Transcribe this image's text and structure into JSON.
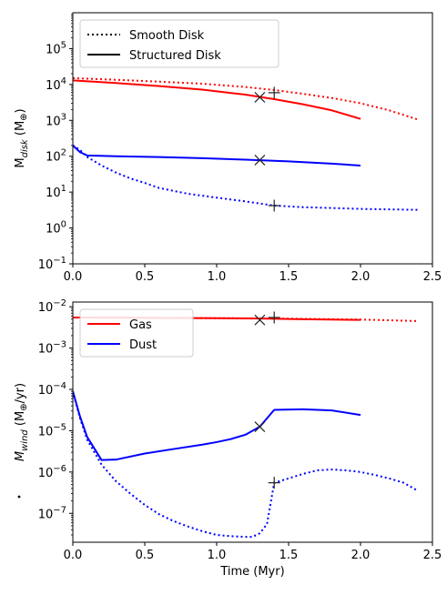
{
  "chart_data": [
    {
      "type": "line",
      "xlabel": "",
      "ylabel_main": "M",
      "ylabel_sub": "disk",
      "ylabel_unit": " (M",
      "ylabel_unit_sym": "⊕",
      "ylabel_unit_end": ")",
      "xlim": [
        0,
        2.5
      ],
      "ylim": [
        0.1,
        1000000
      ],
      "yscale": "log",
      "xticks": [
        0.0,
        0.5,
        1.0,
        1.5,
        2.0,
        2.5
      ],
      "xtick_labels": [
        "0.0",
        "0.5",
        "1.0",
        "1.5",
        "2.0",
        "2.5"
      ],
      "yticks": [
        0.1,
        1,
        10,
        100,
        1000,
        10000,
        100000
      ],
      "ytick_labels": [
        {
          "base": "10",
          "exp": "−1"
        },
        {
          "base": "10",
          "exp": "0"
        },
        {
          "base": "10",
          "exp": "1"
        },
        {
          "base": "10",
          "exp": "2"
        },
        {
          "base": "10",
          "exp": "3"
        },
        {
          "base": "10",
          "exp": "4"
        },
        {
          "base": "10",
          "exp": "5"
        }
      ],
      "legend": {
        "placement": "upper-left",
        "entries": [
          {
            "label": "Smooth Disk",
            "style": "dotted",
            "color": "#000000"
          },
          {
            "label": "Structured Disk",
            "style": "solid",
            "color": "#000000"
          }
        ]
      },
      "series": [
        {
          "component": "gas",
          "style": "dotted",
          "color": "#ff0000",
          "x": [
            0,
            0.3,
            0.6,
            0.9,
            1.2,
            1.4,
            1.6,
            1.8,
            2.0,
            2.2,
            2.4
          ],
          "y": [
            15000,
            13500,
            12000,
            10500,
            8500,
            7000,
            5500,
            4200,
            3000,
            1900,
            1050
          ]
        },
        {
          "component": "gas",
          "style": "solid",
          "color": "#ff0000",
          "x": [
            0,
            0.3,
            0.6,
            0.9,
            1.2,
            1.4,
            1.6,
            1.8,
            1.9,
            2.0
          ],
          "y": [
            13000,
            11000,
            9000,
            7200,
            5200,
            3900,
            2800,
            1900,
            1450,
            1100
          ]
        },
        {
          "component": "dust",
          "style": "dotted",
          "color": "#0000ff",
          "x": [
            0,
            0.05,
            0.1,
            0.2,
            0.3,
            0.4,
            0.5,
            0.6,
            0.8,
            1.0,
            1.2,
            1.3,
            1.4,
            1.6,
            1.8,
            2.0,
            2.2,
            2.4
          ],
          "y": [
            200,
            150,
            95,
            55,
            35,
            24,
            18,
            13,
            9,
            7,
            5.5,
            4.8,
            4.2,
            3.8,
            3.6,
            3.4,
            3.3,
            3.2
          ]
        },
        {
          "component": "dust",
          "style": "solid",
          "color": "#0000ff",
          "x": [
            0,
            0.05,
            0.1,
            0.3,
            0.6,
            0.9,
            1.2,
            1.5,
            1.8,
            2.0
          ],
          "y": [
            200,
            130,
            105,
            100,
            95,
            88,
            80,
            72,
            62,
            55
          ]
        }
      ],
      "markers": [
        {
          "x": 1.3,
          "y": 4400,
          "symbol": "x"
        },
        {
          "x": 1.4,
          "y": 5900,
          "symbol": "+"
        },
        {
          "x": 1.3,
          "y": 78,
          "symbol": "x"
        },
        {
          "x": 1.4,
          "y": 4.2,
          "symbol": "+"
        }
      ]
    },
    {
      "type": "line",
      "xlabel": "Time (Myr)",
      "ylabel_main": "M",
      "ylabel_sub": "wind",
      "ylabel_unit": " (M",
      "ylabel_unit_sym": "⊕",
      "ylabel_unit_end": "/yr)",
      "xlim": [
        0,
        2.5
      ],
      "ylim": [
        2e-08,
        0.013
      ],
      "yscale": "log",
      "xticks": [
        0.0,
        0.5,
        1.0,
        1.5,
        2.0,
        2.5
      ],
      "xtick_labels": [
        "0.0",
        "0.5",
        "1.0",
        "1.5",
        "2.0",
        "2.5"
      ],
      "yticks": [
        1e-07,
        1e-06,
        1e-05,
        0.0001,
        0.001,
        0.01
      ],
      "ytick_labels": [
        {
          "base": "10",
          "exp": "−7"
        },
        {
          "base": "10",
          "exp": "−6"
        },
        {
          "base": "10",
          "exp": "−5"
        },
        {
          "base": "10",
          "exp": "−4"
        },
        {
          "base": "10",
          "exp": "−3"
        },
        {
          "base": "10",
          "exp": "−2"
        }
      ],
      "legend": {
        "placement": "upper-left",
        "entries": [
          {
            "label": "Gas",
            "style": "solid",
            "color": "#ff0000"
          },
          {
            "label": "Dust",
            "style": "solid",
            "color": "#0000ff"
          }
        ]
      },
      "series": [
        {
          "component": "gas",
          "style": "dotted",
          "color": "#ff0000",
          "x": [
            0,
            0.5,
            1.0,
            1.4,
            1.8,
            2.0,
            2.2,
            2.4
          ],
          "y": [
            0.0055,
            0.0054,
            0.0053,
            0.0052,
            0.005,
            0.0049,
            0.0047,
            0.0045
          ]
        },
        {
          "component": "gas",
          "style": "solid",
          "color": "#ff0000",
          "x": [
            0,
            0.5,
            1.0,
            1.3,
            1.6,
            2.0
          ],
          "y": [
            0.0055,
            0.0054,
            0.0053,
            0.0052,
            0.005,
            0.0048
          ]
        },
        {
          "component": "dust",
          "style": "dotted",
          "color": "#0000ff",
          "x": [
            0,
            0.05,
            0.1,
            0.2,
            0.3,
            0.4,
            0.5,
            0.6,
            0.7,
            0.8,
            0.9,
            1.0,
            1.1,
            1.2,
            1.25,
            1.3,
            1.35,
            1.4,
            1.5,
            1.6,
            1.7,
            1.8,
            1.9,
            2.0,
            2.1,
            2.2,
            2.3,
            2.4
          ],
          "y": [
            9e-05,
            2e-05,
            6e-06,
            1.5e-06,
            6e-07,
            3e-07,
            1.6e-07,
            9.5e-08,
            6.5e-08,
            4.8e-08,
            3.7e-08,
            3e-08,
            2.8e-08,
            2.7e-08,
            2.7e-08,
            3.3e-08,
            5.5e-08,
            5.5e-07,
            7e-07,
            9e-07,
            1.1e-06,
            1.15e-06,
            1.1e-06,
            1e-06,
            8.5e-07,
            7e-07,
            5.5e-07,
            3.5e-07
          ]
        },
        {
          "component": "dust",
          "style": "solid",
          "color": "#0000ff",
          "x": [
            0,
            0.05,
            0.1,
            0.2,
            0.3,
            0.5,
            0.7,
            0.9,
            1.0,
            1.1,
            1.2,
            1.3,
            1.35,
            1.4,
            1.6,
            1.8,
            2.0
          ],
          "y": [
            9e-05,
            2.2e-05,
            7e-06,
            1.95e-06,
            2e-06,
            2.8e-06,
            3.6e-06,
            4.6e-06,
            5.3e-06,
            6.3e-06,
            8e-06,
            1.25e-05,
            2e-05,
            3.2e-05,
            3.3e-05,
            3.1e-05,
            2.4e-05
          ]
        }
      ],
      "markers": [
        {
          "x": 1.3,
          "y": 0.0048,
          "symbol": "x"
        },
        {
          "x": 1.4,
          "y": 0.0055,
          "symbol": "+"
        },
        {
          "x": 1.3,
          "y": 1.25e-05,
          "symbol": "x"
        },
        {
          "x": 1.4,
          "y": 5.5e-07,
          "symbol": "+"
        }
      ]
    }
  ]
}
